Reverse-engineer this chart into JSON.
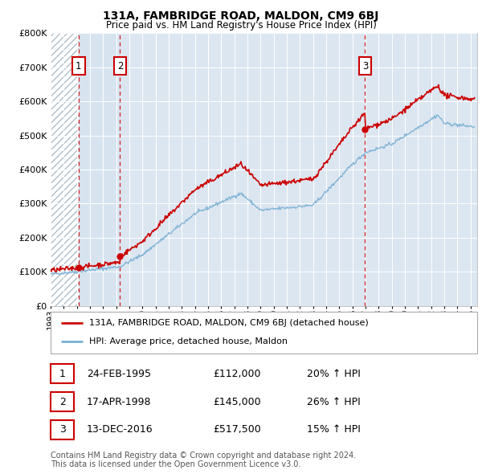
{
  "title": "131A, FAMBRIDGE ROAD, MALDON, CM9 6BJ",
  "subtitle": "Price paid vs. HM Land Registry's House Price Index (HPI)",
  "ylabel_ticks": [
    "£0",
    "£100K",
    "£200K",
    "£300K",
    "£400K",
    "£500K",
    "£600K",
    "£700K",
    "£800K"
  ],
  "ytick_values": [
    0,
    100000,
    200000,
    300000,
    400000,
    500000,
    600000,
    700000,
    800000
  ],
  "ylim": [
    0,
    800000
  ],
  "xlim_start": 1993.0,
  "xlim_end": 2025.5,
  "property_color": "#cc0000",
  "hpi_color": "#7ab0d4",
  "bg_color": "#ffffff",
  "plot_bg_color": "#dce6f1",
  "grid_color": "#ffffff",
  "hatch_bg_color": "#c8d4e0",
  "shade_fill_color": "#d6e4f0",
  "purchases": [
    {
      "year": 1995.12,
      "price": 112000,
      "label": "1"
    },
    {
      "year": 1998.29,
      "price": 145000,
      "label": "2"
    },
    {
      "year": 2016.96,
      "price": 517500,
      "label": "3"
    }
  ],
  "legend_property": "131A, FAMBRIDGE ROAD, MALDON, CM9 6BJ (detached house)",
  "legend_hpi": "HPI: Average price, detached house, Maldon",
  "table_rows": [
    {
      "num": "1",
      "date": "24-FEB-1995",
      "price": "£112,000",
      "pct": "20% ↑ HPI"
    },
    {
      "num": "2",
      "date": "17-APR-1998",
      "price": "£145,000",
      "pct": "26% ↑ HPI"
    },
    {
      "num": "3",
      "date": "13-DEC-2016",
      "price": "£517,500",
      "pct": "15% ↑ HPI"
    }
  ],
  "footnote": "Contains HM Land Registry data © Crown copyright and database right 2024.\nThis data is licensed under the Open Government Licence v3.0."
}
